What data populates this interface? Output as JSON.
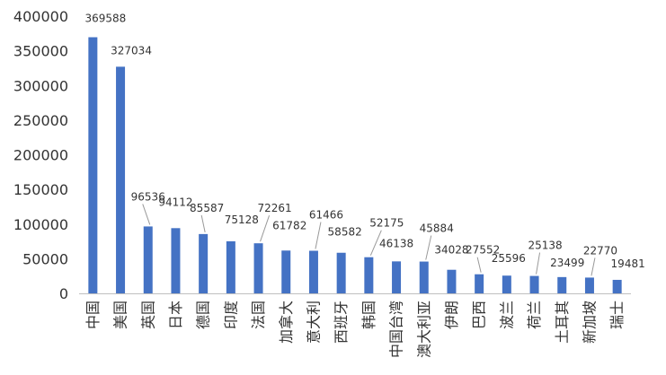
{
  "chart_data": {
    "type": "bar",
    "categories": [
      "中国",
      "美国",
      "英国",
      "日本",
      "德国",
      "印度",
      "法国",
      "加拿大",
      "意大利",
      "西班牙",
      "韩国",
      "中国台湾",
      "澳大利亚",
      "伊朗",
      "巴西",
      "波兰",
      "荷兰",
      "土耳其",
      "新加坡",
      "瑞士"
    ],
    "values": [
      369588,
      327034,
      96536,
      94112,
      85587,
      75128,
      72261,
      61782,
      61466,
      58582,
      52175,
      46138,
      45884,
      34028,
      27552,
      25596,
      25138,
      23499,
      22770,
      19481
    ],
    "data_labels": [
      "369588",
      "327034",
      "96536",
      "94112",
      "85587",
      "75128",
      "72261",
      "61782",
      "61466",
      "58582",
      "52175",
      "46138",
      "45884",
      "34028",
      "27552",
      "25596",
      "25138",
      "23499",
      "22770",
      "19481"
    ],
    "title": "",
    "xlabel": "",
    "ylabel": "",
    "ylim": [
      0,
      400000
    ],
    "yticks": [
      "0",
      "50000",
      "100000",
      "150000",
      "200000",
      "250000",
      "300000",
      "350000",
      "400000"
    ],
    "grid": false,
    "legend": "none",
    "bar_color": "#4472c4",
    "text_color": "#333333",
    "axis_color": "#bfbfbf",
    "leader_color": "#999999"
  }
}
